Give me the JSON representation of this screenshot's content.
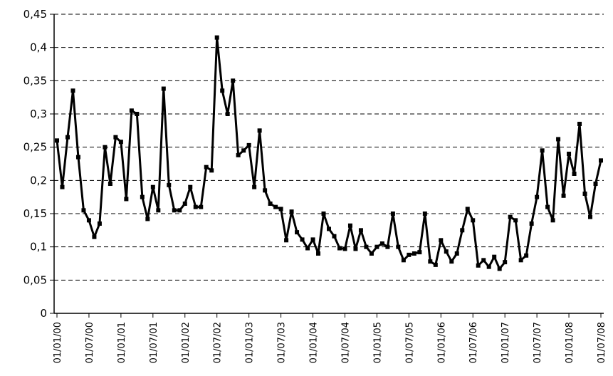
{
  "chart_data": {
    "type": "line",
    "title": "",
    "xlabel": "",
    "ylabel": "",
    "ylim": [
      0,
      0.45
    ],
    "y_ticks": [
      "0",
      "0,05",
      "0,1",
      "0,15",
      "0,2",
      "0,25",
      "0,3",
      "0,35",
      "0,4",
      "0,45"
    ],
    "y_tick_values": [
      0,
      0.05,
      0.1,
      0.15,
      0.2,
      0.25,
      0.3,
      0.35,
      0.4,
      0.45
    ],
    "x_tick_labels": [
      "01/01/00",
      "01/07/00",
      "01/01/01",
      "01/07/01",
      "01/01/02",
      "01/07/02",
      "01/01/03",
      "01/07/03",
      "01/01/04",
      "01/07/04",
      "01/01/05",
      "01/07/05",
      "01/01/06",
      "01/07/06",
      "01/01/07",
      "01/07/07",
      "01/01/08",
      "01/07/08"
    ],
    "x_tick_months": [
      0,
      6,
      12,
      18,
      24,
      30,
      36,
      42,
      48,
      54,
      60,
      66,
      72,
      78,
      84,
      90,
      96,
      102
    ],
    "grid": true,
    "legend": "none",
    "line_color": "#000000",
    "series": [
      {
        "x_start": "01/01/00",
        "frequency": "monthly",
        "values": [
          0.26,
          0.19,
          0.265,
          0.335,
          0.235,
          0.155,
          0.14,
          0.115,
          0.135,
          0.25,
          0.195,
          0.265,
          0.258,
          0.172,
          0.305,
          0.3,
          0.175,
          0.142,
          0.19,
          0.155,
          0.338,
          0.193,
          0.155,
          0.155,
          0.165,
          0.19,
          0.16,
          0.16,
          0.22,
          0.215,
          0.415,
          0.335,
          0.3,
          0.35,
          0.238,
          0.245,
          0.253,
          0.19,
          0.275,
          0.185,
          0.165,
          0.16,
          0.157,
          0.11,
          0.153,
          0.122,
          0.111,
          0.098,
          0.111,
          0.09,
          0.15,
          0.127,
          0.116,
          0.098,
          0.097,
          0.132,
          0.097,
          0.125,
          0.1,
          0.09,
          0.1,
          0.105,
          0.1,
          0.15,
          0.1,
          0.08,
          0.088,
          0.09,
          0.092,
          0.15,
          0.078,
          0.073,
          0.11,
          0.093,
          0.078,
          0.09,
          0.125,
          0.157,
          0.14,
          0.072,
          0.08,
          0.07,
          0.085,
          0.067,
          0.077,
          0.145,
          0.14,
          0.08,
          0.087,
          0.135,
          0.175,
          0.245,
          0.16,
          0.14,
          0.262,
          0.177,
          0.24,
          0.21,
          0.285,
          0.18,
          0.145,
          0.195,
          0.23
        ]
      }
    ]
  }
}
